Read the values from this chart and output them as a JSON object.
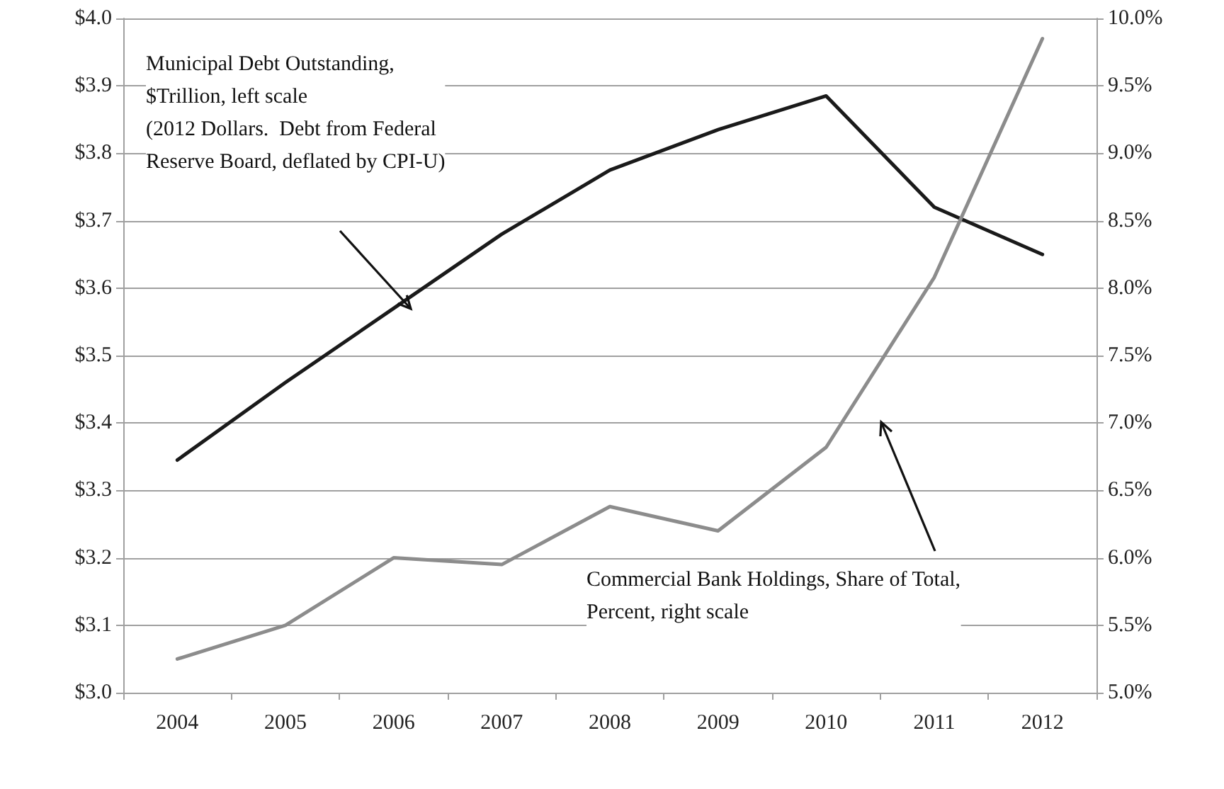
{
  "chart_data": {
    "type": "line",
    "categories": [
      "2004",
      "2005",
      "2006",
      "2007",
      "2008",
      "2009",
      "2010",
      "2011",
      "2012"
    ],
    "series": [
      {
        "color": "#1a1a1a",
        "axis": "y",
        "values": [
          3.345,
          3.46,
          3.57,
          3.68,
          3.775,
          3.835,
          3.885,
          3.72,
          3.65
        ]
      },
      {
        "color": "#8c8c8c",
        "axis": "y2",
        "values": [
          5.25,
          5.5,
          6.0,
          5.95,
          6.38,
          6.2,
          6.82,
          8.08,
          9.85
        ]
      }
    ],
    "ylim": [
      3.0,
      4.0
    ],
    "yticks": [
      {
        "value": 3.0,
        "label": "$3.0"
      },
      {
        "value": 3.1,
        "label": "$3.1"
      },
      {
        "value": 3.2,
        "label": "$3.2"
      },
      {
        "value": 3.3,
        "label": "$3.3"
      },
      {
        "value": 3.4,
        "label": "$3.4"
      },
      {
        "value": 3.5,
        "label": "$3.5"
      },
      {
        "value": 3.6,
        "label": "$3.6"
      },
      {
        "value": 3.7,
        "label": "$3.7"
      },
      {
        "value": 3.8,
        "label": "$3.8"
      },
      {
        "value": 3.9,
        "label": "$3.9"
      },
      {
        "value": 4.0,
        "label": "$4.0"
      }
    ],
    "y2lim": [
      5.0,
      10.0
    ],
    "y2ticks": [
      {
        "value": 5.0,
        "label": "5.0%"
      },
      {
        "value": 5.5,
        "label": "5.5%"
      },
      {
        "value": 6.0,
        "label": "6.0%"
      },
      {
        "value": 6.5,
        "label": "6.5%"
      },
      {
        "value": 7.0,
        "label": "7.0%"
      },
      {
        "value": 7.5,
        "label": "7.5%"
      },
      {
        "value": 8.0,
        "label": "8.0%"
      },
      {
        "value": 8.5,
        "label": "8.5%"
      },
      {
        "value": 9.0,
        "label": "9.0%"
      },
      {
        "value": 9.5,
        "label": "9.5%"
      },
      {
        "value": 10.0,
        "label": "10.0%"
      }
    ],
    "grid": "y",
    "marker": "none",
    "line_style": "solid",
    "annotations": [
      "Municipal Debt Outstanding,\n$Trillion, left scale\n(2012 Dollars.  Debt from Federal\nReserve Board, deflated by CPI-U)",
      "Commercial Bank Holdings, Share of Total,\nPercent, right scale"
    ]
  }
}
